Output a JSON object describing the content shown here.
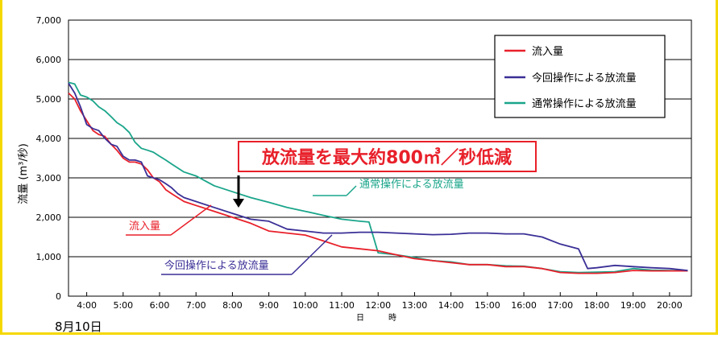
{
  "chart_data": {
    "type": "line",
    "ylabel": "流量 (m³/秒)",
    "xlabel": "日　時",
    "date_label": "8月10日",
    "x_ticks": [
      "4:00",
      "5:00",
      "6:00",
      "7:00",
      "8:00",
      "9:00",
      "10:00",
      "11:00",
      "12:00",
      "13:00",
      "14:00",
      "15:00",
      "16:00",
      "17:00",
      "18:00",
      "19:00",
      "20:00"
    ],
    "x_tick_values": [
      4,
      5,
      6,
      7,
      8,
      9,
      10,
      11,
      12,
      13,
      14,
      15,
      16,
      17,
      18,
      19,
      20
    ],
    "y_ticks": [
      "0",
      "1,000",
      "2,000",
      "3,000",
      "4,000",
      "5,000",
      "6,000",
      "7,000"
    ],
    "y_tick_values": [
      0,
      1000,
      2000,
      3000,
      4000,
      5000,
      6000,
      7000
    ],
    "xlim": [
      3.5,
      20.6
    ],
    "ylim": [
      0,
      7000
    ],
    "grid": true,
    "legend": "top-right",
    "series": [
      {
        "name": "流入量",
        "color": "#e8202a",
        "points": [
          [
            3.5,
            5150
          ],
          [
            3.67,
            5000
          ],
          [
            3.83,
            4700
          ],
          [
            4.0,
            4450
          ],
          [
            4.17,
            4200
          ],
          [
            4.33,
            4100
          ],
          [
            4.5,
            4050
          ],
          [
            4.67,
            3850
          ],
          [
            4.83,
            3700
          ],
          [
            5.0,
            3500
          ],
          [
            5.17,
            3400
          ],
          [
            5.33,
            3400
          ],
          [
            5.5,
            3350
          ],
          [
            5.67,
            3200
          ],
          [
            5.83,
            3000
          ],
          [
            6.0,
            2900
          ],
          [
            6.17,
            2700
          ],
          [
            6.33,
            2600
          ],
          [
            6.5,
            2500
          ],
          [
            6.67,
            2400
          ],
          [
            7.0,
            2300
          ],
          [
            7.5,
            2150
          ],
          [
            8.0,
            2000
          ],
          [
            8.5,
            1850
          ],
          [
            9.0,
            1650
          ],
          [
            9.5,
            1600
          ],
          [
            10.0,
            1550
          ],
          [
            10.5,
            1400
          ],
          [
            11.0,
            1250
          ],
          [
            11.5,
            1200
          ],
          [
            12.0,
            1150
          ],
          [
            12.5,
            1050
          ],
          [
            13.0,
            950
          ],
          [
            13.5,
            900
          ],
          [
            14.0,
            850
          ],
          [
            14.5,
            800
          ],
          [
            15.0,
            800
          ],
          [
            15.5,
            750
          ],
          [
            16.0,
            750
          ],
          [
            16.5,
            700
          ],
          [
            17.0,
            600
          ],
          [
            17.5,
            580
          ],
          [
            18.0,
            580
          ],
          [
            18.5,
            600
          ],
          [
            19.0,
            650
          ],
          [
            19.5,
            640
          ],
          [
            20.0,
            640
          ],
          [
            20.5,
            640
          ]
        ]
      },
      {
        "name": "今回操作による放流量",
        "color": "#3a2f96",
        "points": [
          [
            3.5,
            5400
          ],
          [
            3.67,
            5150
          ],
          [
            3.83,
            4800
          ],
          [
            4.0,
            4350
          ],
          [
            4.17,
            4250
          ],
          [
            4.33,
            4200
          ],
          [
            4.5,
            4000
          ],
          [
            4.67,
            3850
          ],
          [
            4.83,
            3800
          ],
          [
            5.0,
            3550
          ],
          [
            5.17,
            3450
          ],
          [
            5.33,
            3450
          ],
          [
            5.5,
            3400
          ],
          [
            5.67,
            3050
          ],
          [
            5.83,
            3000
          ],
          [
            6.0,
            2950
          ],
          [
            6.17,
            2850
          ],
          [
            6.33,
            2750
          ],
          [
            6.5,
            2600
          ],
          [
            6.67,
            2500
          ],
          [
            7.0,
            2400
          ],
          [
            7.5,
            2250
          ],
          [
            8.0,
            2100
          ],
          [
            8.5,
            1950
          ],
          [
            9.0,
            1900
          ],
          [
            9.5,
            1700
          ],
          [
            10.0,
            1650
          ],
          [
            10.5,
            1600
          ],
          [
            11.0,
            1600
          ],
          [
            11.5,
            1620
          ],
          [
            12.0,
            1620
          ],
          [
            12.5,
            1600
          ],
          [
            13.0,
            1580
          ],
          [
            13.5,
            1560
          ],
          [
            14.0,
            1570
          ],
          [
            14.5,
            1600
          ],
          [
            15.0,
            1600
          ],
          [
            15.5,
            1580
          ],
          [
            16.0,
            1580
          ],
          [
            16.5,
            1500
          ],
          [
            17.0,
            1320
          ],
          [
            17.5,
            1200
          ],
          [
            17.75,
            700
          ],
          [
            18.0,
            720
          ],
          [
            18.5,
            780
          ],
          [
            19.0,
            750
          ],
          [
            19.5,
            720
          ],
          [
            20.0,
            700
          ],
          [
            20.5,
            650
          ]
        ]
      },
      {
        "name": "通常操作による放流量",
        "color": "#1aa58a",
        "points": [
          [
            3.5,
            5420
          ],
          [
            3.67,
            5380
          ],
          [
            3.83,
            5100
          ],
          [
            4.0,
            5050
          ],
          [
            4.17,
            4950
          ],
          [
            4.33,
            4800
          ],
          [
            4.5,
            4700
          ],
          [
            4.67,
            4550
          ],
          [
            4.83,
            4400
          ],
          [
            5.0,
            4300
          ],
          [
            5.17,
            4150
          ],
          [
            5.33,
            3900
          ],
          [
            5.5,
            3750
          ],
          [
            5.67,
            3700
          ],
          [
            5.83,
            3650
          ],
          [
            6.0,
            3550
          ],
          [
            6.17,
            3450
          ],
          [
            6.33,
            3350
          ],
          [
            6.5,
            3250
          ],
          [
            6.67,
            3150
          ],
          [
            7.0,
            3050
          ],
          [
            7.5,
            2800
          ],
          [
            8.0,
            2650
          ],
          [
            8.5,
            2500
          ],
          [
            9.0,
            2380
          ],
          [
            9.5,
            2250
          ],
          [
            10.0,
            2150
          ],
          [
            10.5,
            2050
          ],
          [
            11.0,
            1950
          ],
          [
            11.5,
            1900
          ],
          [
            11.75,
            1880
          ],
          [
            12.0,
            1100
          ],
          [
            12.5,
            1050
          ],
          [
            13.0,
            980
          ],
          [
            13.5,
            900
          ],
          [
            14.0,
            870
          ],
          [
            14.5,
            800
          ],
          [
            15.0,
            800
          ],
          [
            15.5,
            770
          ],
          [
            16.0,
            760
          ],
          [
            16.5,
            700
          ],
          [
            17.0,
            620
          ],
          [
            17.5,
            600
          ],
          [
            18.0,
            610
          ],
          [
            18.5,
            620
          ],
          [
            19.0,
            700
          ],
          [
            19.5,
            660
          ],
          [
            20.0,
            650
          ],
          [
            20.5,
            640
          ]
        ]
      }
    ],
    "annotations": {
      "headline": "放流量を最大約800㎥／秒低減",
      "callout_green": "通常操作による放流量",
      "callout_red": "流入量",
      "callout_blue": "今回操作による放流量"
    }
  }
}
